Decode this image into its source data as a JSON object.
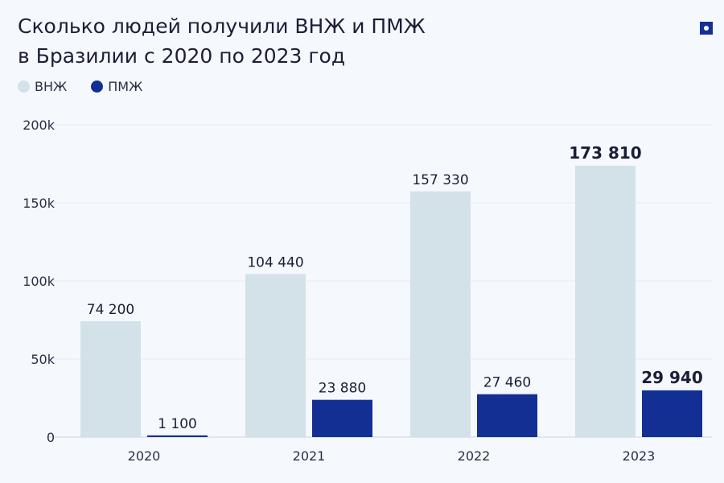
{
  "title": "Сколько людей получили ВНЖ и ПМЖ\nв Бразилии с 2020 по 2023 год",
  "colors": {
    "vnzh": "#d3e1e9",
    "pmzh": "#142f94"
  },
  "chart_data": {
    "type": "bar",
    "title": "Сколько людей получили ВНЖ и ПМЖ в Бразилии с 2020 по 2023 год",
    "categories": [
      "2020",
      "2021",
      "2022",
      "2023"
    ],
    "series": [
      {
        "name": "ВНЖ",
        "values": [
          74200,
          104440,
          157330,
          173810
        ],
        "labels": [
          "74 200",
          "104 440",
          "157 330",
          "173 810"
        ]
      },
      {
        "name": "ПМЖ",
        "values": [
          1100,
          23880,
          27460,
          29940
        ],
        "labels": [
          "1 100",
          "23 880",
          "27 460",
          "29 940"
        ]
      }
    ],
    "yticks": [
      0,
      50000,
      100000,
      150000,
      200000
    ],
    "ytick_labels": [
      "0",
      "50k",
      "100k",
      "150k",
      "200k"
    ],
    "ylim": [
      0,
      200000
    ],
    "grid": true,
    "legend": "top-left"
  }
}
